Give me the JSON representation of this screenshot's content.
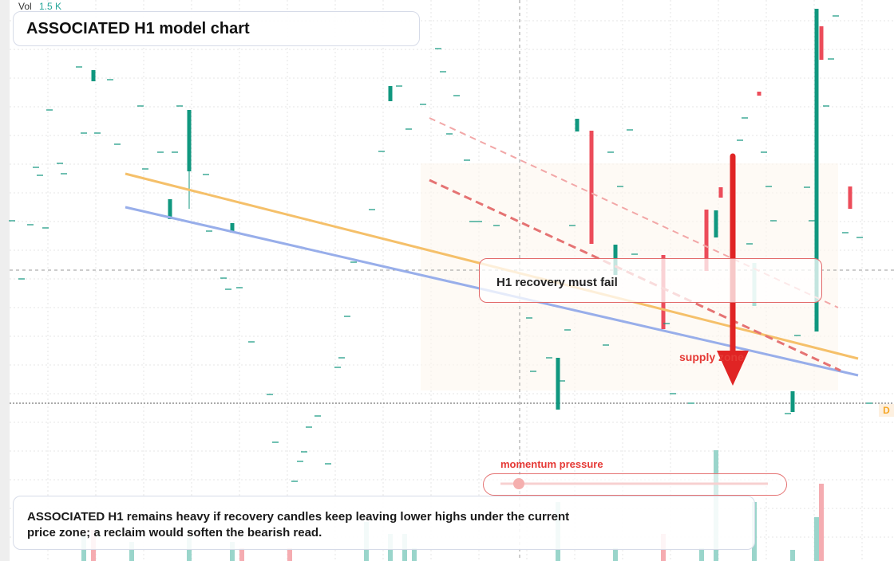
{
  "header": {
    "volume_label": "Vol",
    "volume_value": "1.5 K",
    "title": "ASSOCIATED H1 model chart"
  },
  "annotations": {
    "callout": "H1 recovery must fail",
    "zone": "supply zone",
    "momentum": "momentum pressure",
    "price_marker": "D"
  },
  "note": "ASSOCIATED H1 remains heavy if recovery candles keep leaving lower highs under the current price zone; a reclaim would soften the bearish read."
}
